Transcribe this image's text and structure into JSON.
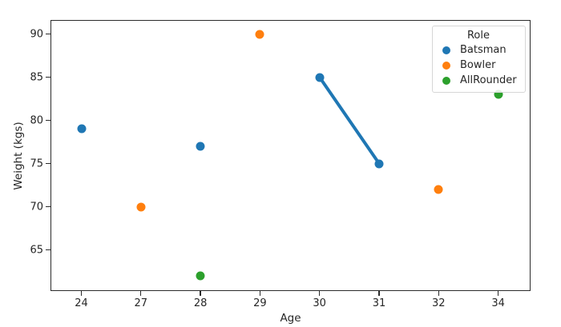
{
  "chart_data": {
    "type": "scatter",
    "title": "",
    "xlabel": "Age",
    "ylabel": "Weight (kgs)",
    "x_categories": [
      "24",
      "27",
      "28",
      "29",
      "30",
      "31",
      "32",
      "34"
    ],
    "y_ticks": [
      65,
      70,
      75,
      80,
      85,
      90
    ],
    "y_axis_approx_range": [
      60.5,
      91.5
    ],
    "x_axis_type": "categorical-even-spacing",
    "grid": false,
    "legend": {
      "title": "Role",
      "position": "upper right",
      "entries": [
        {
          "label": "Batsman",
          "color": "#1f77b4"
        },
        {
          "label": "Bowler",
          "color": "#ff7f0e"
        },
        {
          "label": "AllRounder",
          "color": "#2ca02c"
        }
      ]
    },
    "series": [
      {
        "name": "Batsman",
        "color": "#1f77b4",
        "points": [
          {
            "x": "24",
            "y": 79
          },
          {
            "x": "28",
            "y": 77
          },
          {
            "x": "30",
            "y": 85
          },
          {
            "x": "31",
            "y": 75
          }
        ]
      },
      {
        "name": "Bowler",
        "color": "#ff7f0e",
        "points": [
          {
            "x": "27",
            "y": 70
          },
          {
            "x": "29",
            "y": 90
          },
          {
            "x": "32",
            "y": 72
          }
        ]
      },
      {
        "name": "AllRounder",
        "color": "#2ca02c",
        "points": [
          {
            "x": "28",
            "y": 62
          },
          {
            "x": "34",
            "y": 83
          }
        ]
      }
    ],
    "line_segments": [
      {
        "series": "Batsman",
        "color": "#1f77b4",
        "stroke_width": 4,
        "points": [
          {
            "x": "30",
            "y": 85
          },
          {
            "x": "31",
            "y": 75
          }
        ]
      }
    ],
    "spine_color": "#2b2b2b",
    "background_color": "#ffffff"
  }
}
